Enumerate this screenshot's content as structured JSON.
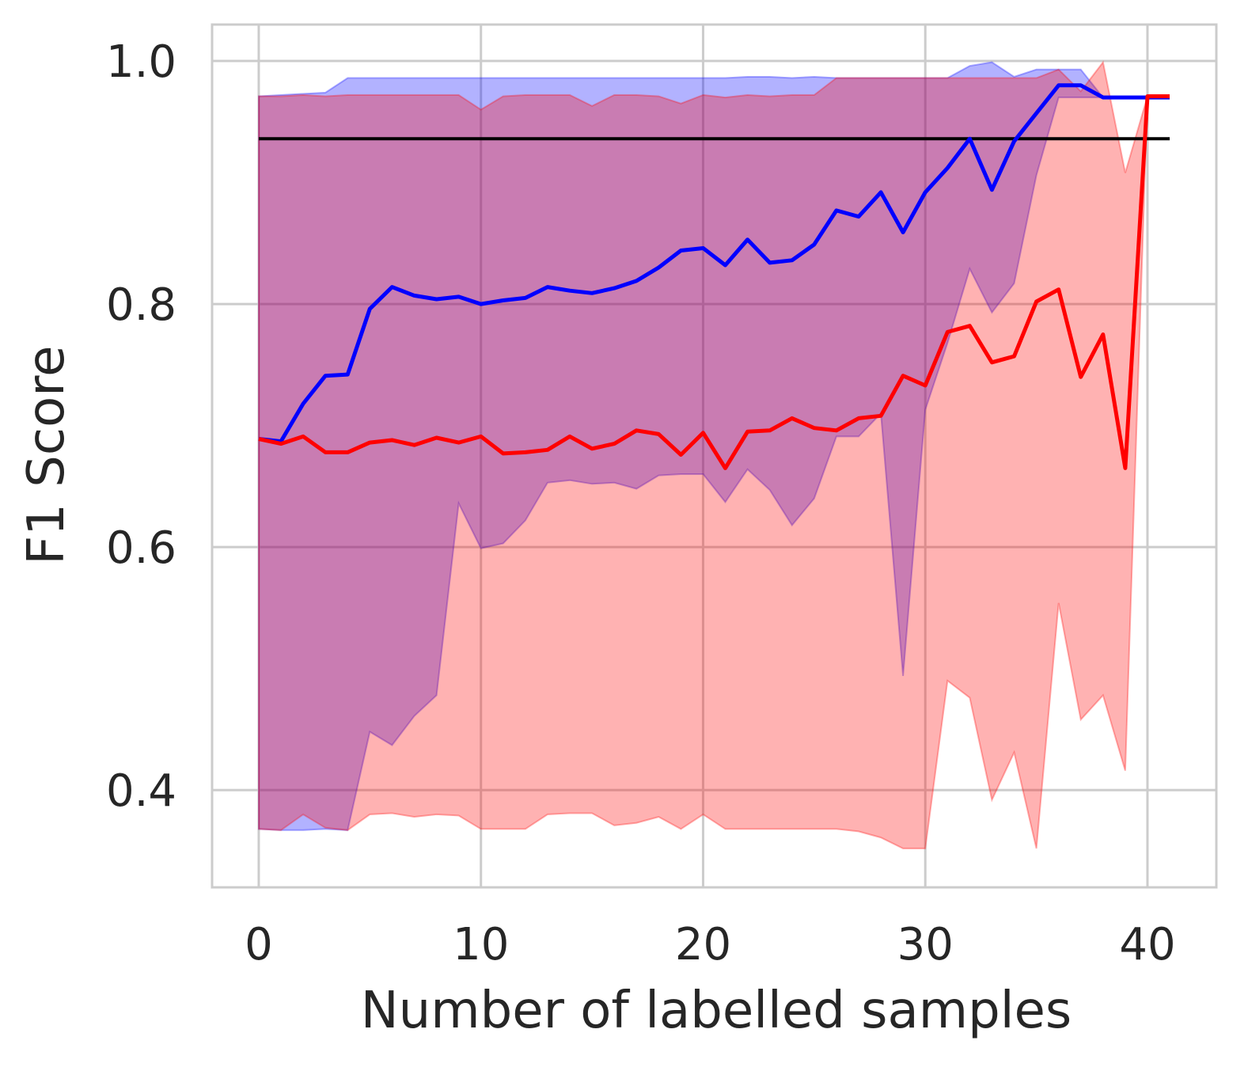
{
  "chart_data": {
    "type": "line",
    "title": "",
    "xlabel": "Number of labelled samples",
    "ylabel": "F1 Score",
    "xlim": [
      -2.1,
      43.1
    ],
    "ylim": [
      0.32,
      1.03
    ],
    "xticks": [
      0,
      10,
      20,
      30,
      40
    ],
    "yticks": [
      0.4,
      0.6,
      0.8,
      1.0
    ],
    "xtick_labels": [
      "0",
      "10",
      "20",
      "30",
      "40"
    ],
    "ytick_labels": [
      "0.4",
      "0.6",
      "0.8",
      "1.0"
    ],
    "grid": true,
    "colors": {
      "blue": "#0000ff",
      "red": "#ff0000",
      "reference": "#000000",
      "grid": "#cccccc"
    },
    "reference_line": {
      "name": "baseline",
      "y": 0.936,
      "x_start": 0,
      "x_end": 41
    },
    "series": [
      {
        "name": "blue",
        "color": "#0000ff",
        "x": [
          0,
          1,
          2,
          3,
          4,
          5,
          6,
          7,
          8,
          9,
          10,
          11,
          12,
          13,
          14,
          15,
          16,
          17,
          18,
          19,
          20,
          21,
          22,
          23,
          24,
          25,
          26,
          27,
          28,
          29,
          30,
          31,
          32,
          33,
          34,
          35,
          36,
          37,
          38,
          39,
          40,
          41
        ],
        "mean": [
          0.689,
          0.687,
          0.718,
          0.741,
          0.742,
          0.796,
          0.814,
          0.807,
          0.804,
          0.806,
          0.8,
          0.803,
          0.805,
          0.814,
          0.811,
          0.809,
          0.813,
          0.819,
          0.83,
          0.844,
          0.846,
          0.832,
          0.853,
          0.834,
          0.836,
          0.849,
          0.877,
          0.872,
          0.892,
          0.859,
          0.892,
          0.912,
          0.936,
          0.894,
          0.934,
          0.957,
          0.98,
          0.98,
          0.97,
          0.97,
          0.97,
          0.97
        ],
        "upper": [
          0.971,
          0.972,
          0.973,
          0.974,
          0.986,
          0.986,
          0.986,
          0.986,
          0.986,
          0.986,
          0.986,
          0.986,
          0.986,
          0.986,
          0.986,
          0.986,
          0.986,
          0.986,
          0.986,
          0.986,
          0.986,
          0.986,
          0.987,
          0.987,
          0.986,
          0.987,
          0.986,
          0.986,
          0.986,
          0.986,
          0.986,
          0.986,
          0.996,
          0.999,
          0.987,
          0.993,
          0.993,
          0.993,
          0.97,
          0.97,
          0.97,
          0.97
        ],
        "lower": [
          0.368,
          0.367,
          0.367,
          0.368,
          0.367,
          0.448,
          0.437,
          0.461,
          0.478,
          0.636,
          0.599,
          0.603,
          0.622,
          0.653,
          0.655,
          0.652,
          0.653,
          0.648,
          0.659,
          0.66,
          0.66,
          0.637,
          0.664,
          0.647,
          0.618,
          0.64,
          0.691,
          0.691,
          0.71,
          0.494,
          0.713,
          0.768,
          0.829,
          0.793,
          0.817,
          0.906,
          0.97,
          0.97,
          0.97,
          0.97,
          0.97,
          0.97
        ]
      },
      {
        "name": "red",
        "color": "#ff0000",
        "x": [
          0,
          1,
          2,
          3,
          4,
          5,
          6,
          7,
          8,
          9,
          10,
          11,
          12,
          13,
          14,
          15,
          16,
          17,
          18,
          19,
          20,
          21,
          22,
          23,
          24,
          25,
          26,
          27,
          28,
          29,
          30,
          31,
          32,
          33,
          34,
          35,
          36,
          37,
          38,
          39,
          40,
          41
        ],
        "mean": [
          0.689,
          0.685,
          0.691,
          0.678,
          0.678,
          0.686,
          0.688,
          0.684,
          0.69,
          0.686,
          0.691,
          0.677,
          0.678,
          0.68,
          0.691,
          0.681,
          0.685,
          0.696,
          0.693,
          0.676,
          0.694,
          0.665,
          0.695,
          0.696,
          0.706,
          0.698,
          0.696,
          0.706,
          0.708,
          0.741,
          0.733,
          0.777,
          0.782,
          0.752,
          0.757,
          0.802,
          0.812,
          0.74,
          0.775,
          0.665,
          0.971,
          0.971
        ],
        "upper": [
          0.971,
          0.971,
          0.972,
          0.971,
          0.972,
          0.972,
          0.972,
          0.972,
          0.972,
          0.972,
          0.96,
          0.971,
          0.972,
          0.972,
          0.972,
          0.963,
          0.972,
          0.972,
          0.971,
          0.965,
          0.972,
          0.97,
          0.972,
          0.971,
          0.972,
          0.972,
          0.986,
          0.986,
          0.986,
          0.986,
          0.986,
          0.986,
          0.986,
          0.986,
          0.986,
          0.986,
          0.993,
          0.975,
          0.999,
          0.908,
          0.971,
          0.971
        ],
        "lower": [
          0.368,
          0.367,
          0.38,
          0.369,
          0.367,
          0.38,
          0.381,
          0.378,
          0.38,
          0.379,
          0.368,
          0.368,
          0.368,
          0.38,
          0.381,
          0.381,
          0.371,
          0.373,
          0.378,
          0.368,
          0.38,
          0.368,
          0.368,
          0.368,
          0.368,
          0.368,
          0.368,
          0.366,
          0.361,
          0.352,
          0.352,
          0.49,
          0.476,
          0.392,
          0.431,
          0.352,
          0.554,
          0.458,
          0.478,
          0.416,
          0.971,
          0.971
        ]
      }
    ]
  }
}
